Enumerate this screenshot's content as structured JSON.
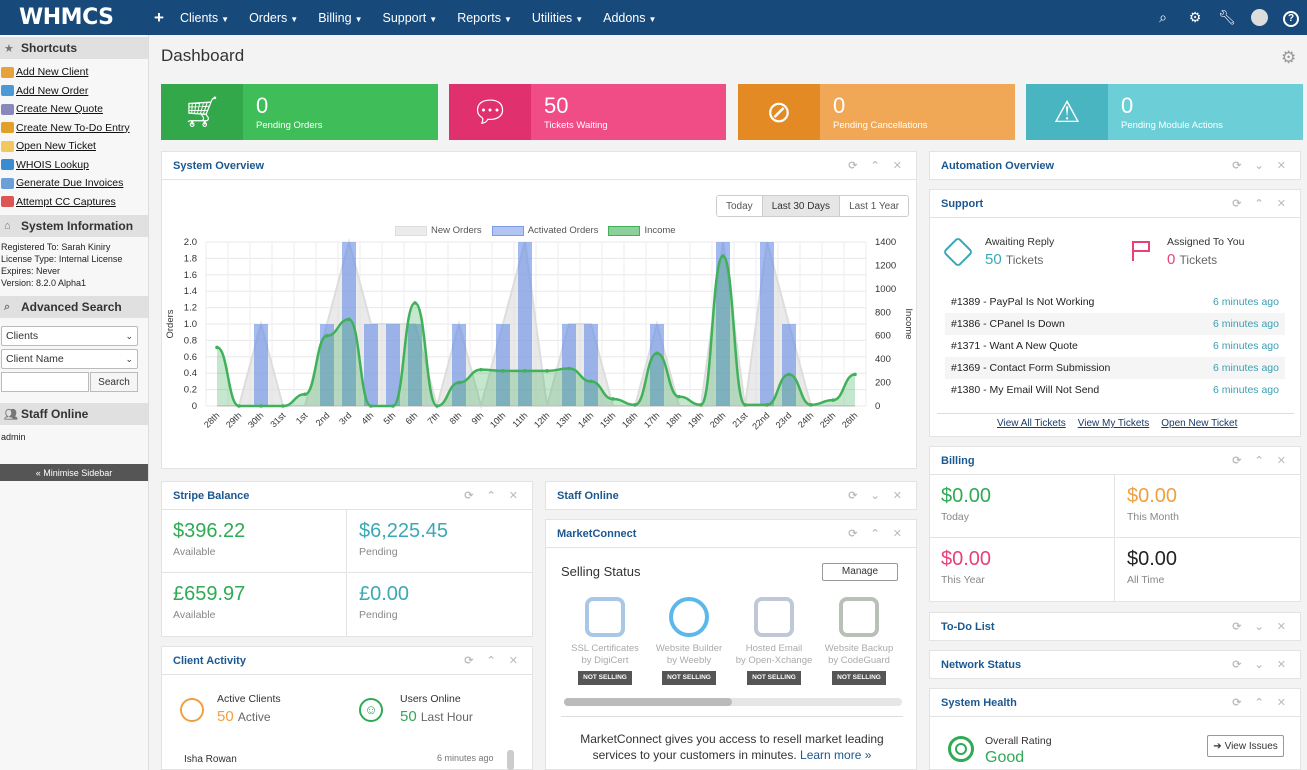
{
  "app": {
    "logo": "WHMCS"
  },
  "nav": {
    "plus": "+",
    "items": [
      "Clients",
      "Orders",
      "Billing",
      "Support",
      "Reports",
      "Utilities",
      "Addons"
    ]
  },
  "sidebar": {
    "shortcuts_title": "Shortcuts",
    "shortcuts": [
      {
        "label": "Add New Client",
        "color": "#e8a23a"
      },
      {
        "label": "Add New Order",
        "color": "#4a9ad8"
      },
      {
        "label": "Create New Quote",
        "color": "#88b"
      },
      {
        "label": "Create New To-Do Entry",
        "color": "#e0a02a"
      },
      {
        "label": "Open New Ticket",
        "color": "#f2c85e"
      },
      {
        "label": "WHOIS Lookup",
        "color": "#3b8bd0"
      },
      {
        "label": "Generate Due Invoices",
        "color": "#6a9fd8"
      },
      {
        "label": "Attempt CC Captures",
        "color": "#d55"
      }
    ],
    "sysinfo_title": "System Information",
    "sysinfo": [
      "Registered To: Sarah Kiniry",
      "License Type: Internal License",
      "Expires: Never",
      "Version: 8.2.0 Alpha1"
    ],
    "search_title": "Advanced Search",
    "search_select1": "Clients",
    "search_select2": "Client Name",
    "search_button": "Search",
    "staff_title": "Staff Online",
    "staff_user": "admin",
    "minimise": "« Minimise Sidebar"
  },
  "page": {
    "title": "Dashboard"
  },
  "stats": [
    {
      "value": "0",
      "label": "Pending Orders",
      "color": "#3ebd58",
      "icon_bg": "#33a84a",
      "icon": "cart-icon"
    },
    {
      "value": "50",
      "label": "Tickets Waiting",
      "color": "#f04d87",
      "icon_bg": "#e0306d",
      "icon": "comment-icon"
    },
    {
      "value": "0",
      "label": "Pending Cancellations",
      "color": "#f0a856",
      "icon_bg": "#e38a25",
      "icon": "ban-icon"
    },
    {
      "value": "0",
      "label": "Pending Module Actions",
      "color": "#6ccfd7",
      "icon_bg": "#49b5c1",
      "icon": "warning-icon"
    }
  ],
  "system_overview": {
    "title": "System Overview",
    "ranges": [
      "Today",
      "Last 30 Days",
      "Last 1 Year"
    ],
    "active_range": "Last 30 Days"
  },
  "chart_data": {
    "type": "bar",
    "categories": [
      "28th",
      "29th",
      "30th",
      "31st",
      "1st",
      "2nd",
      "3rd",
      "4th",
      "5th",
      "6th",
      "7th",
      "8th",
      "9th",
      "10th",
      "11th",
      "12th",
      "13th",
      "14th",
      "15th",
      "16th",
      "17th",
      "18th",
      "19th",
      "20th",
      "21st",
      "22nd",
      "23rd",
      "24th",
      "25th",
      "26th"
    ],
    "series": [
      {
        "name": "New Orders",
        "axis": "left",
        "values": [
          0,
          0,
          1,
          0,
          0,
          1,
          2,
          1,
          1,
          1,
          0,
          1,
          0,
          1,
          2,
          0,
          1,
          1,
          0,
          0,
          1,
          0,
          0,
          2,
          0,
          2,
          1,
          0,
          0,
          0
        ]
      },
      {
        "name": "Activated Orders",
        "axis": "left",
        "values": [
          0,
          0,
          1,
          0,
          0,
          1,
          2,
          1,
          1,
          1,
          0,
          1,
          0,
          1,
          2,
          0,
          1,
          1,
          0,
          0,
          1,
          0,
          0,
          2,
          0,
          2,
          1,
          0,
          0,
          0
        ]
      },
      {
        "name": "Income",
        "axis": "right",
        "values": [
          500,
          0,
          0,
          0,
          100,
          600,
          740,
          0,
          0,
          880,
          0,
          200,
          310,
          300,
          300,
          300,
          320,
          210,
          60,
          10,
          450,
          80,
          10,
          1280,
          10,
          10,
          270,
          10,
          50,
          270
        ]
      }
    ],
    "yleft": {
      "label": "Orders",
      "ticks": [
        "0",
        "0.2",
        "0.4",
        "0.6",
        "0.8",
        "1.0",
        "1.2",
        "1.4",
        "1.6",
        "1.8",
        "2.0"
      ],
      "max": 2.0
    },
    "yright": {
      "label": "Income",
      "ticks": [
        "0",
        "200",
        "400",
        "600",
        "800",
        "1000",
        "1200",
        "1400"
      ],
      "max": 1400
    },
    "colors": {
      "New Orders": "#dddddd",
      "Activated Orders": "#7f9ce8",
      "Income": "#40b15a"
    }
  },
  "stripe": {
    "title": "Stripe Balance",
    "cells": [
      {
        "amount": "$396.22",
        "label": "Available",
        "color": "#2faa55"
      },
      {
        "amount": "$6,225.45",
        "label": "Pending",
        "color": "#3aa9b5"
      },
      {
        "amount": "£659.97",
        "label": "Available",
        "color": "#2faa55"
      },
      {
        "amount": "£0.00",
        "label": "Pending",
        "color": "#3aa9b5"
      }
    ]
  },
  "client_activity": {
    "title": "Client Activity",
    "active_label": "Active Clients",
    "active_value": "50",
    "active_suffix": "Active",
    "online_label": "Users Online",
    "online_value": "50",
    "online_suffix": "Last Hour",
    "first_row_name": "Isha Rowan",
    "first_row_time": "6 minutes ago"
  },
  "staff_online": {
    "title": "Staff Online"
  },
  "marketconnect": {
    "title": "MarketConnect",
    "selling_status": "Selling Status",
    "manage": "Manage",
    "products": [
      {
        "name1": "SSL Certificates",
        "name2": "by DigiCert",
        "status": "NOT SELLING"
      },
      {
        "name1": "Website Builder",
        "name2": "by Weebly",
        "status": "NOT SELLING"
      },
      {
        "name1": "Hosted Email",
        "name2": "by Open-Xchange",
        "status": "NOT SELLING"
      },
      {
        "name1": "Website Backup",
        "name2": "by CodeGuard",
        "status": "NOT SELLING"
      }
    ],
    "footer": "MarketConnect gives you access to resell market leading services to your customers in minutes.",
    "learn_more": "Learn more »"
  },
  "automation": {
    "title": "Automation Overview"
  },
  "support": {
    "title": "Support",
    "awaiting_label": "Awaiting Reply",
    "awaiting_value": "50",
    "awaiting_suffix": "Tickets",
    "assigned_label": "Assigned To You",
    "assigned_value": "0",
    "assigned_suffix": "Tickets",
    "tickets": [
      {
        "subject": "#1389 - PayPal Is Not Working",
        "time": "6 minutes ago"
      },
      {
        "subject": "#1386 - CPanel Is Down",
        "time": "6 minutes ago"
      },
      {
        "subject": "#1371 - Want A New Quote",
        "time": "6 minutes ago"
      },
      {
        "subject": "#1369 - Contact Form Submission",
        "time": "6 minutes ago"
      },
      {
        "subject": "#1380 - My Email Will Not Send",
        "time": "6 minutes ago"
      }
    ],
    "links": [
      "View All Tickets",
      "View My Tickets",
      "Open New Ticket"
    ]
  },
  "billing": {
    "title": "Billing",
    "cells": [
      {
        "amount": "$0.00",
        "label": "Today",
        "color": "#2faa55"
      },
      {
        "amount": "$0.00",
        "label": "This Month",
        "color": "#f0a040"
      },
      {
        "amount": "$0.00",
        "label": "This Year",
        "color": "#e8407a"
      },
      {
        "amount": "$0.00",
        "label": "All Time",
        "color": "#222222"
      }
    ]
  },
  "todo": {
    "title": "To-Do List"
  },
  "network": {
    "title": "Network Status"
  },
  "health": {
    "title": "System Health",
    "rating_label": "Overall Rating",
    "rating": "Good",
    "view_issues": "View Issues"
  }
}
